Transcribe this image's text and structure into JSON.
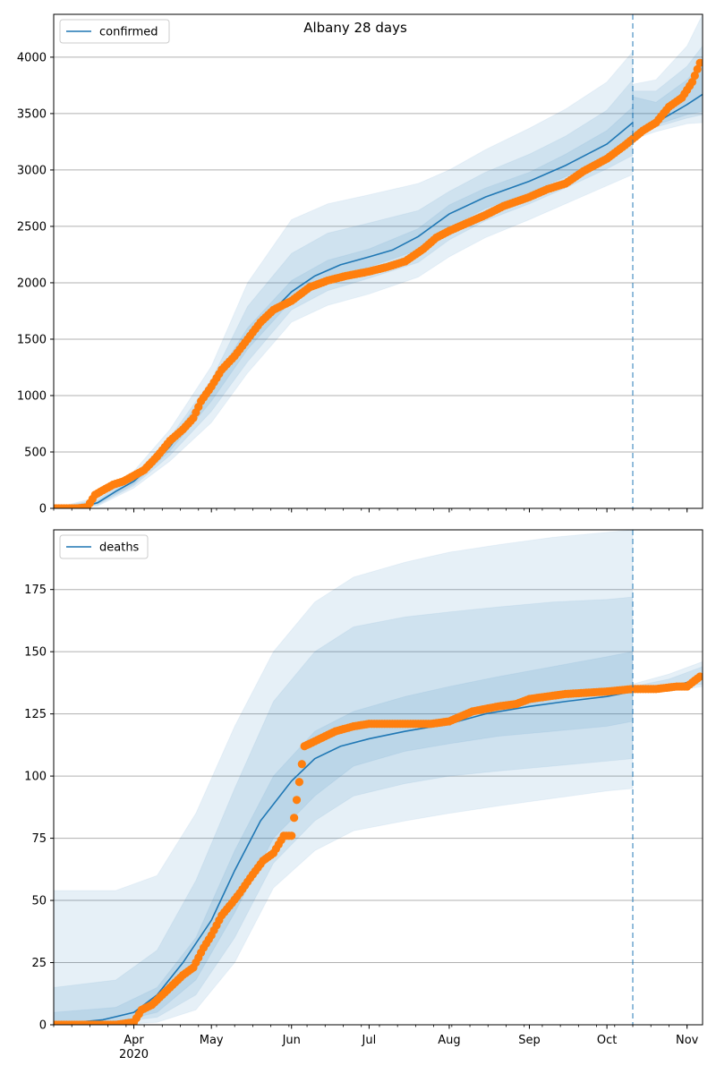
{
  "title": "Albany 28 days",
  "colors": {
    "model": "#1f77b4",
    "observed": "#ff7f0e",
    "grid": "#b0b0b0",
    "band": "#1f77b4"
  },
  "x_axis": {
    "start": "2020-03-01",
    "end": "2020-11-07",
    "month_labels": [
      {
        "date": "2020-04-01",
        "label": "Apr"
      },
      {
        "date": "2020-05-01",
        "label": "May"
      },
      {
        "date": "2020-06-01",
        "label": "Jun"
      },
      {
        "date": "2020-07-01",
        "label": "Jul"
      },
      {
        "date": "2020-08-01",
        "label": "Aug"
      },
      {
        "date": "2020-09-01",
        "label": "Sep"
      },
      {
        "date": "2020-10-01",
        "label": "Oct"
      },
      {
        "date": "2020-11-01",
        "label": "Nov"
      }
    ],
    "year_label": "2020",
    "year_label_date": "2020-04-01",
    "forecast_line_date": "2020-10-11"
  },
  "chart_data": [
    {
      "type": "line",
      "legend": "confirmed",
      "legend_position": "top-left",
      "grid": "horizontal",
      "ylim": [
        0,
        4380
      ],
      "yticks": [
        0,
        500,
        1000,
        1500,
        2000,
        2500,
        3000,
        3500,
        4000
      ],
      "model_median": {
        "x": [
          "2020-03-01",
          "2020-03-10",
          "2020-03-18",
          "2020-03-25",
          "2020-04-01",
          "2020-04-08",
          "2020-04-15",
          "2020-04-22",
          "2020-05-01",
          "2020-05-10",
          "2020-05-20",
          "2020-06-01",
          "2020-06-10",
          "2020-06-20",
          "2020-07-01",
          "2020-07-10",
          "2020-07-20",
          "2020-08-01",
          "2020-08-15",
          "2020-09-01",
          "2020-09-15",
          "2020-10-01",
          "2020-10-11"
        ],
        "y": [
          0,
          0,
          50,
          150,
          240,
          380,
          550,
          760,
          1050,
          1360,
          1640,
          1920,
          2060,
          2160,
          2230,
          2290,
          2410,
          2610,
          2760,
          2900,
          3040,
          3230,
          3420
        ]
      },
      "forecast_median": {
        "x": [
          "2020-10-11",
          "2020-10-20",
          "2020-11-01",
          "2020-11-07"
        ],
        "y": [
          3280,
          3420,
          3580,
          3670
        ]
      },
      "bands": [
        {
          "level": "outer",
          "x": [
            "2020-03-01",
            "2020-03-18",
            "2020-04-01",
            "2020-04-15",
            "2020-05-01",
            "2020-05-15",
            "2020-06-01",
            "2020-06-15",
            "2020-07-01",
            "2020-07-20",
            "2020-08-01",
            "2020-08-15",
            "2020-09-01",
            "2020-09-15",
            "2020-10-01",
            "2020-10-11"
          ],
          "low": [
            0,
            20,
            180,
            420,
            760,
            1200,
            1650,
            1800,
            1900,
            2050,
            2230,
            2400,
            2560,
            2700,
            2860,
            2960
          ],
          "high": [
            0,
            100,
            330,
            700,
            1260,
            2000,
            2560,
            2700,
            2780,
            2880,
            3000,
            3180,
            3370,
            3540,
            3780,
            4050
          ]
        },
        {
          "level": "middle",
          "x": [
            "2020-03-01",
            "2020-03-18",
            "2020-04-01",
            "2020-04-15",
            "2020-05-01",
            "2020-05-15",
            "2020-06-01",
            "2020-06-15",
            "2020-07-01",
            "2020-07-20",
            "2020-08-01",
            "2020-08-15",
            "2020-09-01",
            "2020-09-15",
            "2020-10-01",
            "2020-10-11"
          ],
          "low": [
            0,
            30,
            200,
            470,
            860,
            1300,
            1760,
            1930,
            2040,
            2180,
            2380,
            2550,
            2700,
            2840,
            3010,
            3130
          ],
          "high": [
            0,
            80,
            290,
            630,
            1140,
            1790,
            2260,
            2440,
            2530,
            2640,
            2810,
            2980,
            3140,
            3300,
            3530,
            3800
          ]
        },
        {
          "level": "inner",
          "x": [
            "2020-03-01",
            "2020-03-18",
            "2020-04-01",
            "2020-04-15",
            "2020-05-01",
            "2020-05-15",
            "2020-06-01",
            "2020-06-15",
            "2020-07-01",
            "2020-07-20",
            "2020-08-01",
            "2020-08-15",
            "2020-09-01",
            "2020-09-15",
            "2020-10-01",
            "2020-10-11"
          ],
          "low": [
            0,
            40,
            215,
            510,
            950,
            1410,
            1840,
            2040,
            2140,
            2290,
            2490,
            2660,
            2800,
            2940,
            3120,
            3270
          ],
          "high": [
            0,
            65,
            265,
            590,
            1100,
            1600,
            2020,
            2200,
            2300,
            2480,
            2690,
            2840,
            2980,
            3140,
            3350,
            3560
          ]
        }
      ],
      "forecast_bands": [
        {
          "level": "outer",
          "x": [
            "2020-10-11",
            "2020-10-20",
            "2020-11-01",
            "2020-11-07"
          ],
          "low": [
            3270,
            3340,
            3410,
            3420
          ],
          "high": [
            3760,
            3800,
            4100,
            4380
          ]
        },
        {
          "level": "middle",
          "x": [
            "2020-10-11",
            "2020-10-20",
            "2020-11-01",
            "2020-11-07"
          ],
          "low": [
            3290,
            3380,
            3460,
            3490
          ],
          "high": [
            3700,
            3700,
            3920,
            4100
          ]
        },
        {
          "level": "inner",
          "x": [
            "2020-10-11",
            "2020-10-20",
            "2020-11-01",
            "2020-11-07"
          ],
          "low": [
            3300,
            3400,
            3490,
            3520
          ],
          "high": [
            3650,
            3600,
            3800,
            3950
          ]
        }
      ],
      "observed": {
        "x": [
          "2020-03-01",
          "2020-03-05",
          "2020-03-10",
          "2020-03-14",
          "2020-03-17",
          "2020-03-20",
          "2020-03-24",
          "2020-03-28",
          "2020-04-01",
          "2020-04-05",
          "2020-04-10",
          "2020-04-15",
          "2020-04-20",
          "2020-04-24",
          "2020-04-27",
          "2020-05-01",
          "2020-05-05",
          "2020-05-10",
          "2020-05-15",
          "2020-05-20",
          "2020-05-25",
          "2020-06-01",
          "2020-06-08",
          "2020-06-15",
          "2020-06-22",
          "2020-07-01",
          "2020-07-08",
          "2020-07-15",
          "2020-07-22",
          "2020-07-27",
          "2020-08-01",
          "2020-08-08",
          "2020-08-15",
          "2020-08-22",
          "2020-09-01",
          "2020-09-08",
          "2020-09-15",
          "2020-09-22",
          "2020-10-01",
          "2020-10-08",
          "2020-10-15",
          "2020-10-20",
          "2020-10-25",
          "2020-10-30",
          "2020-11-03",
          "2020-11-06"
        ],
        "y": [
          0,
          0,
          0,
          10,
          120,
          160,
          210,
          240,
          290,
          340,
          460,
          600,
          700,
          800,
          950,
          1080,
          1230,
          1350,
          1500,
          1650,
          1760,
          1840,
          1960,
          2020,
          2060,
          2100,
          2140,
          2190,
          2300,
          2400,
          2460,
          2530,
          2600,
          2680,
          2760,
          2830,
          2880,
          2990,
          3100,
          3220,
          3350,
          3420,
          3560,
          3640,
          3780,
          3950
        ]
      }
    },
    {
      "type": "line",
      "legend": "deaths",
      "legend_position": "top-left",
      "grid": "horizontal",
      "ylim": [
        0,
        199
      ],
      "yticks": [
        0,
        25,
        50,
        75,
        100,
        125,
        150,
        175
      ],
      "model_median": {
        "x": [
          "2020-03-01",
          "2020-03-10",
          "2020-03-20",
          "2020-04-01",
          "2020-04-10",
          "2020-04-20",
          "2020-05-01",
          "2020-05-10",
          "2020-05-20",
          "2020-06-01",
          "2020-06-10",
          "2020-06-20",
          "2020-07-01",
          "2020-07-15",
          "2020-08-01",
          "2020-08-15",
          "2020-09-01",
          "2020-09-15",
          "2020-10-01",
          "2020-10-11"
        ],
        "y": [
          0,
          1,
          2,
          5,
          12,
          25,
          42,
          62,
          82,
          98,
          107,
          112,
          115,
          118,
          121,
          125,
          128,
          130,
          132,
          134
        ]
      },
      "forecast_median": {
        "x": [
          "2020-10-11",
          "2020-10-25",
          "2020-11-07"
        ],
        "y": [
          135,
          136,
          139
        ]
      },
      "bands": [
        {
          "level": "outer",
          "x": [
            "2020-03-01",
            "2020-03-25",
            "2020-04-10",
            "2020-04-25",
            "2020-05-10",
            "2020-05-25",
            "2020-06-10",
            "2020-06-25",
            "2020-07-15",
            "2020-08-01",
            "2020-08-20",
            "2020-09-10",
            "2020-10-01",
            "2020-10-11"
          ],
          "low": [
            0,
            0,
            1,
            6,
            25,
            55,
            70,
            78,
            82,
            85,
            88,
            91,
            94,
            95
          ],
          "high": [
            54,
            54,
            60,
            85,
            120,
            150,
            170,
            180,
            186,
            190,
            193,
            196,
            198,
            199
          ]
        },
        {
          "level": "middle",
          "x": [
            "2020-03-01",
            "2020-03-25",
            "2020-04-10",
            "2020-04-25",
            "2020-05-10",
            "2020-05-25",
            "2020-06-10",
            "2020-06-25",
            "2020-07-15",
            "2020-08-01",
            "2020-08-20",
            "2020-09-10",
            "2020-10-01",
            "2020-10-11"
          ],
          "low": [
            0,
            1,
            3,
            12,
            35,
            65,
            82,
            92,
            97,
            100,
            102,
            104,
            106,
            107
          ],
          "high": [
            15,
            18,
            30,
            58,
            95,
            130,
            150,
            160,
            164,
            166,
            168,
            170,
            171,
            172
          ]
        },
        {
          "level": "inner",
          "x": [
            "2020-03-01",
            "2020-03-25",
            "2020-04-10",
            "2020-04-25",
            "2020-05-10",
            "2020-05-25",
            "2020-06-10",
            "2020-06-25",
            "2020-07-15",
            "2020-08-01",
            "2020-08-20",
            "2020-09-10",
            "2020-10-01",
            "2020-10-11"
          ],
          "low": [
            0,
            1,
            5,
            18,
            45,
            75,
            92,
            104,
            110,
            113,
            116,
            118,
            120,
            122
          ],
          "high": [
            5,
            7,
            15,
            35,
            70,
            100,
            118,
            126,
            132,
            136,
            140,
            144,
            148,
            150
          ]
        }
      ],
      "forecast_bands": [
        {
          "level": "outer",
          "x": [
            "2020-10-11",
            "2020-10-25",
            "2020-11-07"
          ],
          "low": [
            134,
            134,
            136
          ],
          "high": [
            137,
            141,
            146
          ]
        },
        {
          "level": "inner",
          "x": [
            "2020-10-11",
            "2020-10-25",
            "2020-11-07"
          ],
          "low": [
            135,
            135,
            137
          ],
          "high": [
            136,
            139,
            144
          ]
        }
      ],
      "observed": {
        "x": [
          "2020-03-01",
          "2020-03-15",
          "2020-03-25",
          "2020-04-01",
          "2020-04-04",
          "2020-04-08",
          "2020-04-12",
          "2020-04-15",
          "2020-04-20",
          "2020-04-24",
          "2020-04-28",
          "2020-05-01",
          "2020-05-05",
          "2020-05-09",
          "2020-05-12",
          "2020-05-16",
          "2020-05-21",
          "2020-05-25",
          "2020-05-29",
          "2020-06-01",
          "2020-06-06",
          "2020-06-12",
          "2020-06-18",
          "2020-06-25",
          "2020-07-01",
          "2020-07-15",
          "2020-07-25",
          "2020-08-01",
          "2020-08-10",
          "2020-08-20",
          "2020-08-27",
          "2020-09-01",
          "2020-09-15",
          "2020-10-01",
          "2020-10-11",
          "2020-10-20",
          "2020-10-28",
          "2020-11-01",
          "2020-11-06"
        ],
        "y": [
          0,
          0,
          0,
          1,
          6,
          8,
          12,
          15,
          20,
          23,
          31,
          36,
          44,
          49,
          53,
          59,
          66,
          69,
          76,
          76,
          112,
          115,
          118,
          120,
          121,
          121,
          121,
          122,
          126,
          128,
          129,
          131,
          133,
          134,
          135,
          135,
          136,
          136,
          140
        ]
      }
    }
  ]
}
